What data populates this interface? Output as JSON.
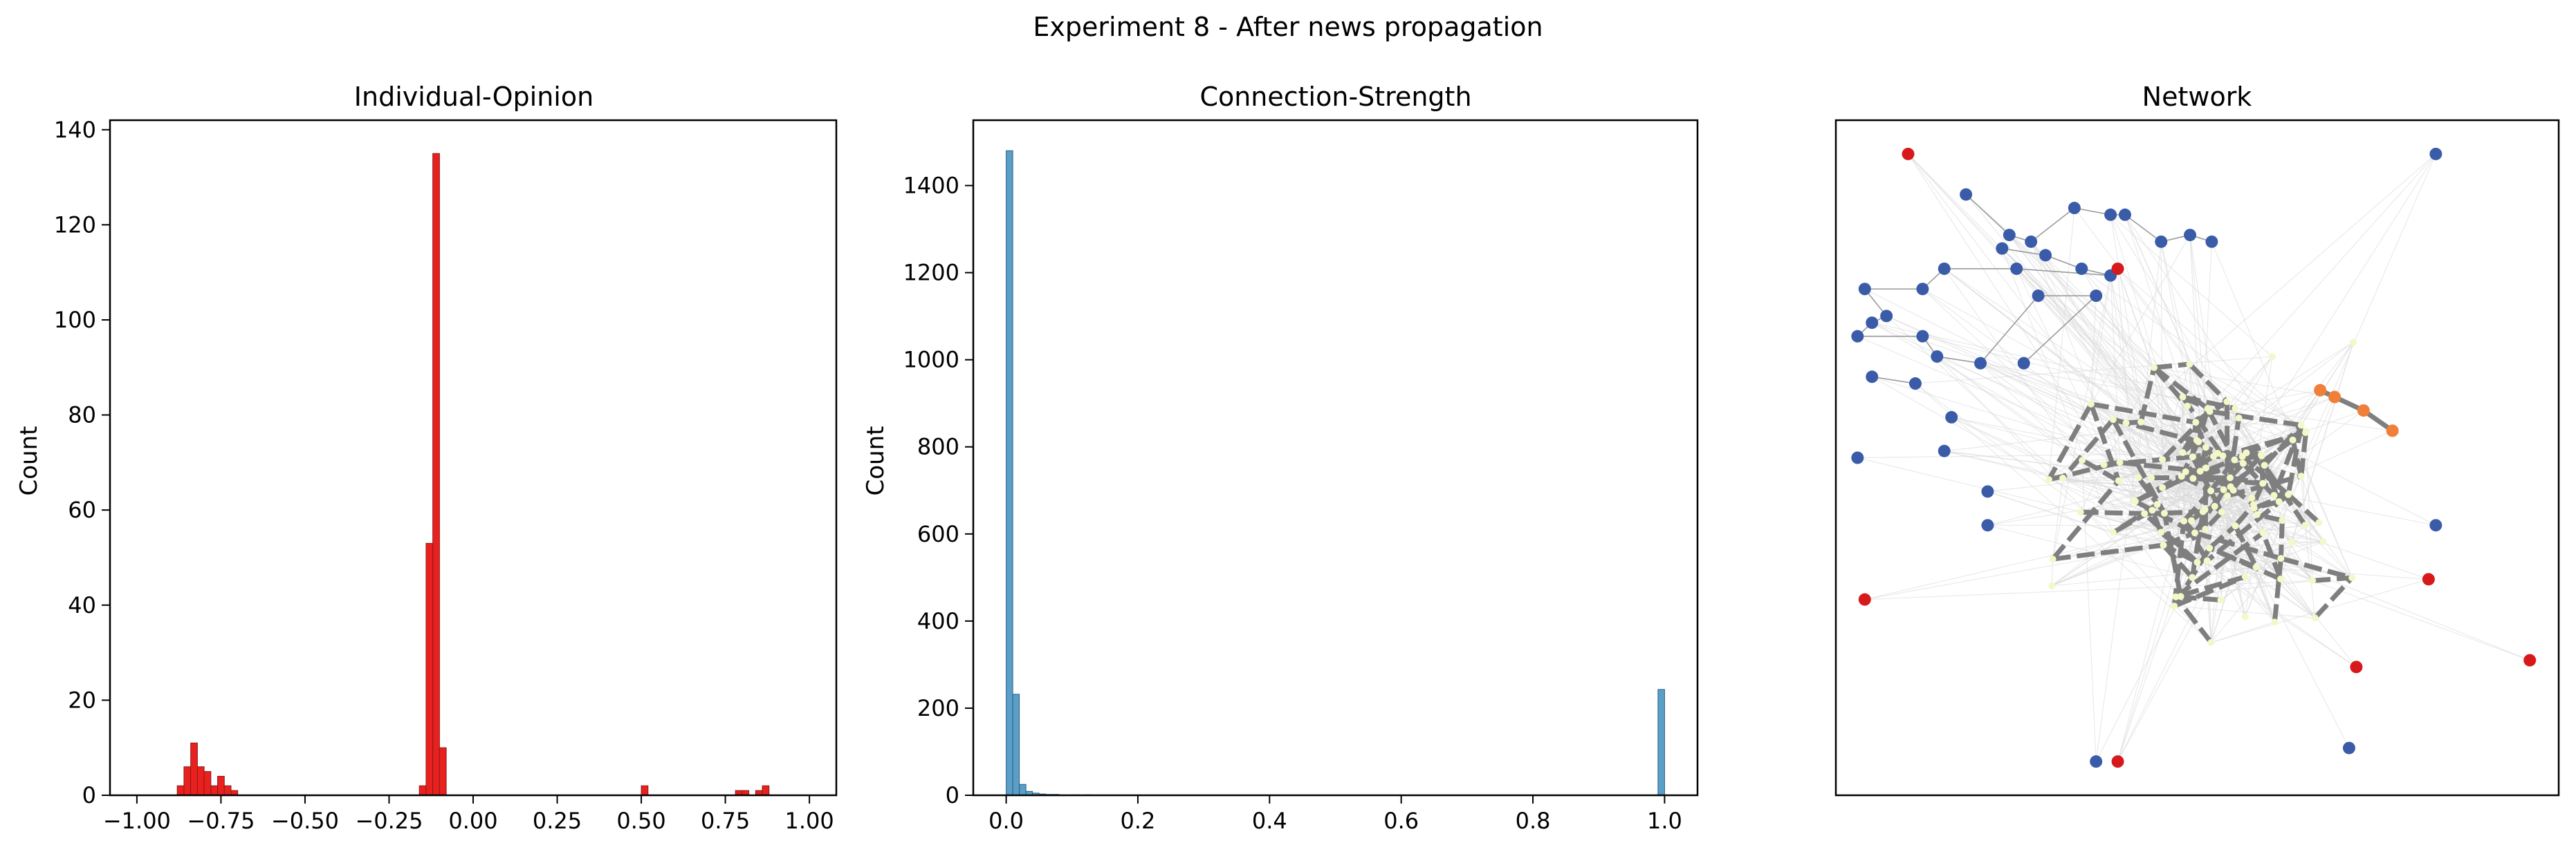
{
  "suptitle": "Experiment 8 - After news propagation",
  "colors": {
    "opinion_bar": "#e8211e",
    "opinion_edge": "#8b1a1a",
    "strength_bar": "#5a9fc8",
    "strength_edge": "#2e5f80",
    "net_edge_strong": "#7f7f7f",
    "net_edge_weak": "#d9d9d9",
    "node_blue": "#3a5ca8",
    "node_red": "#d7191c",
    "node_orange": "#f07f3a",
    "node_pale": "#f4f8c8"
  },
  "chart_data": [
    {
      "type": "bar",
      "title": "Individual-Opinion",
      "xlabel": "",
      "ylabel": "Count",
      "xlim": [
        -1.08,
        1.08
      ],
      "ylim": [
        0,
        142
      ],
      "xticks": [
        -1.0,
        -0.75,
        -0.5,
        -0.25,
        0.0,
        0.25,
        0.5,
        0.75,
        1.0
      ],
      "xtick_labels": [
        "−1.00",
        "−0.75",
        "−0.50",
        "−0.25",
        "0.00",
        "0.25",
        "0.50",
        "0.75",
        "1.00"
      ],
      "yticks": [
        0,
        20,
        40,
        60,
        80,
        100,
        120,
        140
      ],
      "ytick_labels": [
        "0",
        "20",
        "40",
        "60",
        "80",
        "100",
        "120",
        "140"
      ],
      "bin_width": 0.02,
      "bins": [
        {
          "x": -0.88,
          "count": 2
        },
        {
          "x": -0.86,
          "count": 6
        },
        {
          "x": -0.84,
          "count": 11
        },
        {
          "x": -0.82,
          "count": 6
        },
        {
          "x": -0.8,
          "count": 5
        },
        {
          "x": -0.78,
          "count": 2
        },
        {
          "x": -0.76,
          "count": 4
        },
        {
          "x": -0.74,
          "count": 2
        },
        {
          "x": -0.72,
          "count": 1
        },
        {
          "x": -0.16,
          "count": 2
        },
        {
          "x": -0.14,
          "count": 53
        },
        {
          "x": -0.12,
          "count": 135
        },
        {
          "x": -0.1,
          "count": 10
        },
        {
          "x": 0.5,
          "count": 2
        },
        {
          "x": 0.78,
          "count": 1
        },
        {
          "x": 0.8,
          "count": 1
        },
        {
          "x": 0.84,
          "count": 1
        },
        {
          "x": 0.86,
          "count": 2
        }
      ]
    },
    {
      "type": "bar",
      "title": "Connection-Strength",
      "xlabel": "",
      "ylabel": "Count",
      "xlim": [
        -0.05,
        1.05
      ],
      "ylim": [
        0,
        1550
      ],
      "xticks": [
        0.0,
        0.2,
        0.4,
        0.6,
        0.8,
        1.0
      ],
      "xtick_labels": [
        "0.0",
        "0.2",
        "0.4",
        "0.6",
        "0.8",
        "1.0"
      ],
      "yticks": [
        0,
        200,
        400,
        600,
        800,
        1000,
        1200,
        1400
      ],
      "ytick_labels": [
        "0",
        "200",
        "400",
        "600",
        "800",
        "1000",
        "1200",
        "1400"
      ],
      "bin_width": 0.01,
      "bins": [
        {
          "x": 0.0,
          "count": 1480
        },
        {
          "x": 0.01,
          "count": 232
        },
        {
          "x": 0.02,
          "count": 25
        },
        {
          "x": 0.03,
          "count": 9
        },
        {
          "x": 0.04,
          "count": 5
        },
        {
          "x": 0.05,
          "count": 3
        },
        {
          "x": 0.06,
          "count": 2
        },
        {
          "x": 0.07,
          "count": 2
        },
        {
          "x": 0.08,
          "count": 1
        },
        {
          "x": 0.1,
          "count": 1
        },
        {
          "x": 0.12,
          "count": 1
        },
        {
          "x": 0.99,
          "count": 243
        }
      ]
    },
    {
      "type": "network",
      "title": "Network",
      "nodes": [
        {
          "x": 0.1,
          "y": 0.95,
          "g": "red"
        },
        {
          "x": 0.18,
          "y": 0.89,
          "g": "blue"
        },
        {
          "x": 0.24,
          "y": 0.83,
          "g": "blue"
        },
        {
          "x": 0.27,
          "y": 0.82,
          "g": "blue"
        },
        {
          "x": 0.33,
          "y": 0.87,
          "g": "blue"
        },
        {
          "x": 0.38,
          "y": 0.86,
          "g": "blue"
        },
        {
          "x": 0.4,
          "y": 0.86,
          "g": "blue"
        },
        {
          "x": 0.45,
          "y": 0.82,
          "g": "blue"
        },
        {
          "x": 0.49,
          "y": 0.83,
          "g": "blue"
        },
        {
          "x": 0.52,
          "y": 0.82,
          "g": "blue"
        },
        {
          "x": 0.23,
          "y": 0.81,
          "g": "blue"
        },
        {
          "x": 0.29,
          "y": 0.8,
          "g": "blue"
        },
        {
          "x": 0.34,
          "y": 0.78,
          "g": "blue"
        },
        {
          "x": 0.38,
          "y": 0.77,
          "g": "blue"
        },
        {
          "x": 0.39,
          "y": 0.78,
          "g": "red"
        },
        {
          "x": 0.25,
          "y": 0.78,
          "g": "blue"
        },
        {
          "x": 0.15,
          "y": 0.78,
          "g": "blue"
        },
        {
          "x": 0.12,
          "y": 0.75,
          "g": "blue"
        },
        {
          "x": 0.04,
          "y": 0.75,
          "g": "blue"
        },
        {
          "x": 0.07,
          "y": 0.71,
          "g": "blue"
        },
        {
          "x": 0.05,
          "y": 0.7,
          "g": "blue"
        },
        {
          "x": 0.03,
          "y": 0.68,
          "g": "blue"
        },
        {
          "x": 0.12,
          "y": 0.68,
          "g": "blue"
        },
        {
          "x": 0.14,
          "y": 0.65,
          "g": "blue"
        },
        {
          "x": 0.2,
          "y": 0.64,
          "g": "blue"
        },
        {
          "x": 0.28,
          "y": 0.74,
          "g": "blue"
        },
        {
          "x": 0.36,
          "y": 0.74,
          "g": "blue"
        },
        {
          "x": 0.26,
          "y": 0.64,
          "g": "blue"
        },
        {
          "x": 0.05,
          "y": 0.62,
          "g": "blue"
        },
        {
          "x": 0.11,
          "y": 0.61,
          "g": "blue"
        },
        {
          "x": 0.16,
          "y": 0.56,
          "g": "blue"
        },
        {
          "x": 0.15,
          "y": 0.51,
          "g": "blue"
        },
        {
          "x": 0.03,
          "y": 0.5,
          "g": "blue"
        },
        {
          "x": 0.21,
          "y": 0.45,
          "g": "blue"
        },
        {
          "x": 0.21,
          "y": 0.4,
          "g": "blue"
        },
        {
          "x": 0.04,
          "y": 0.29,
          "g": "red"
        },
        {
          "x": 0.83,
          "y": 0.95,
          "g": "blue"
        },
        {
          "x": 0.83,
          "y": 0.4,
          "g": "blue"
        },
        {
          "x": 0.82,
          "y": 0.32,
          "g": "red"
        },
        {
          "x": 0.96,
          "y": 0.2,
          "g": "red"
        },
        {
          "x": 0.72,
          "y": 0.19,
          "g": "red"
        },
        {
          "x": 0.71,
          "y": 0.07,
          "g": "blue"
        },
        {
          "x": 0.36,
          "y": 0.05,
          "g": "blue"
        },
        {
          "x": 0.39,
          "y": 0.05,
          "g": "red"
        },
        {
          "x": 0.67,
          "y": 0.6,
          "g": "orange"
        },
        {
          "x": 0.69,
          "y": 0.59,
          "g": "orange"
        },
        {
          "x": 0.73,
          "y": 0.57,
          "g": "orange"
        },
        {
          "x": 0.77,
          "y": 0.54,
          "g": "orange"
        }
      ]
    }
  ]
}
